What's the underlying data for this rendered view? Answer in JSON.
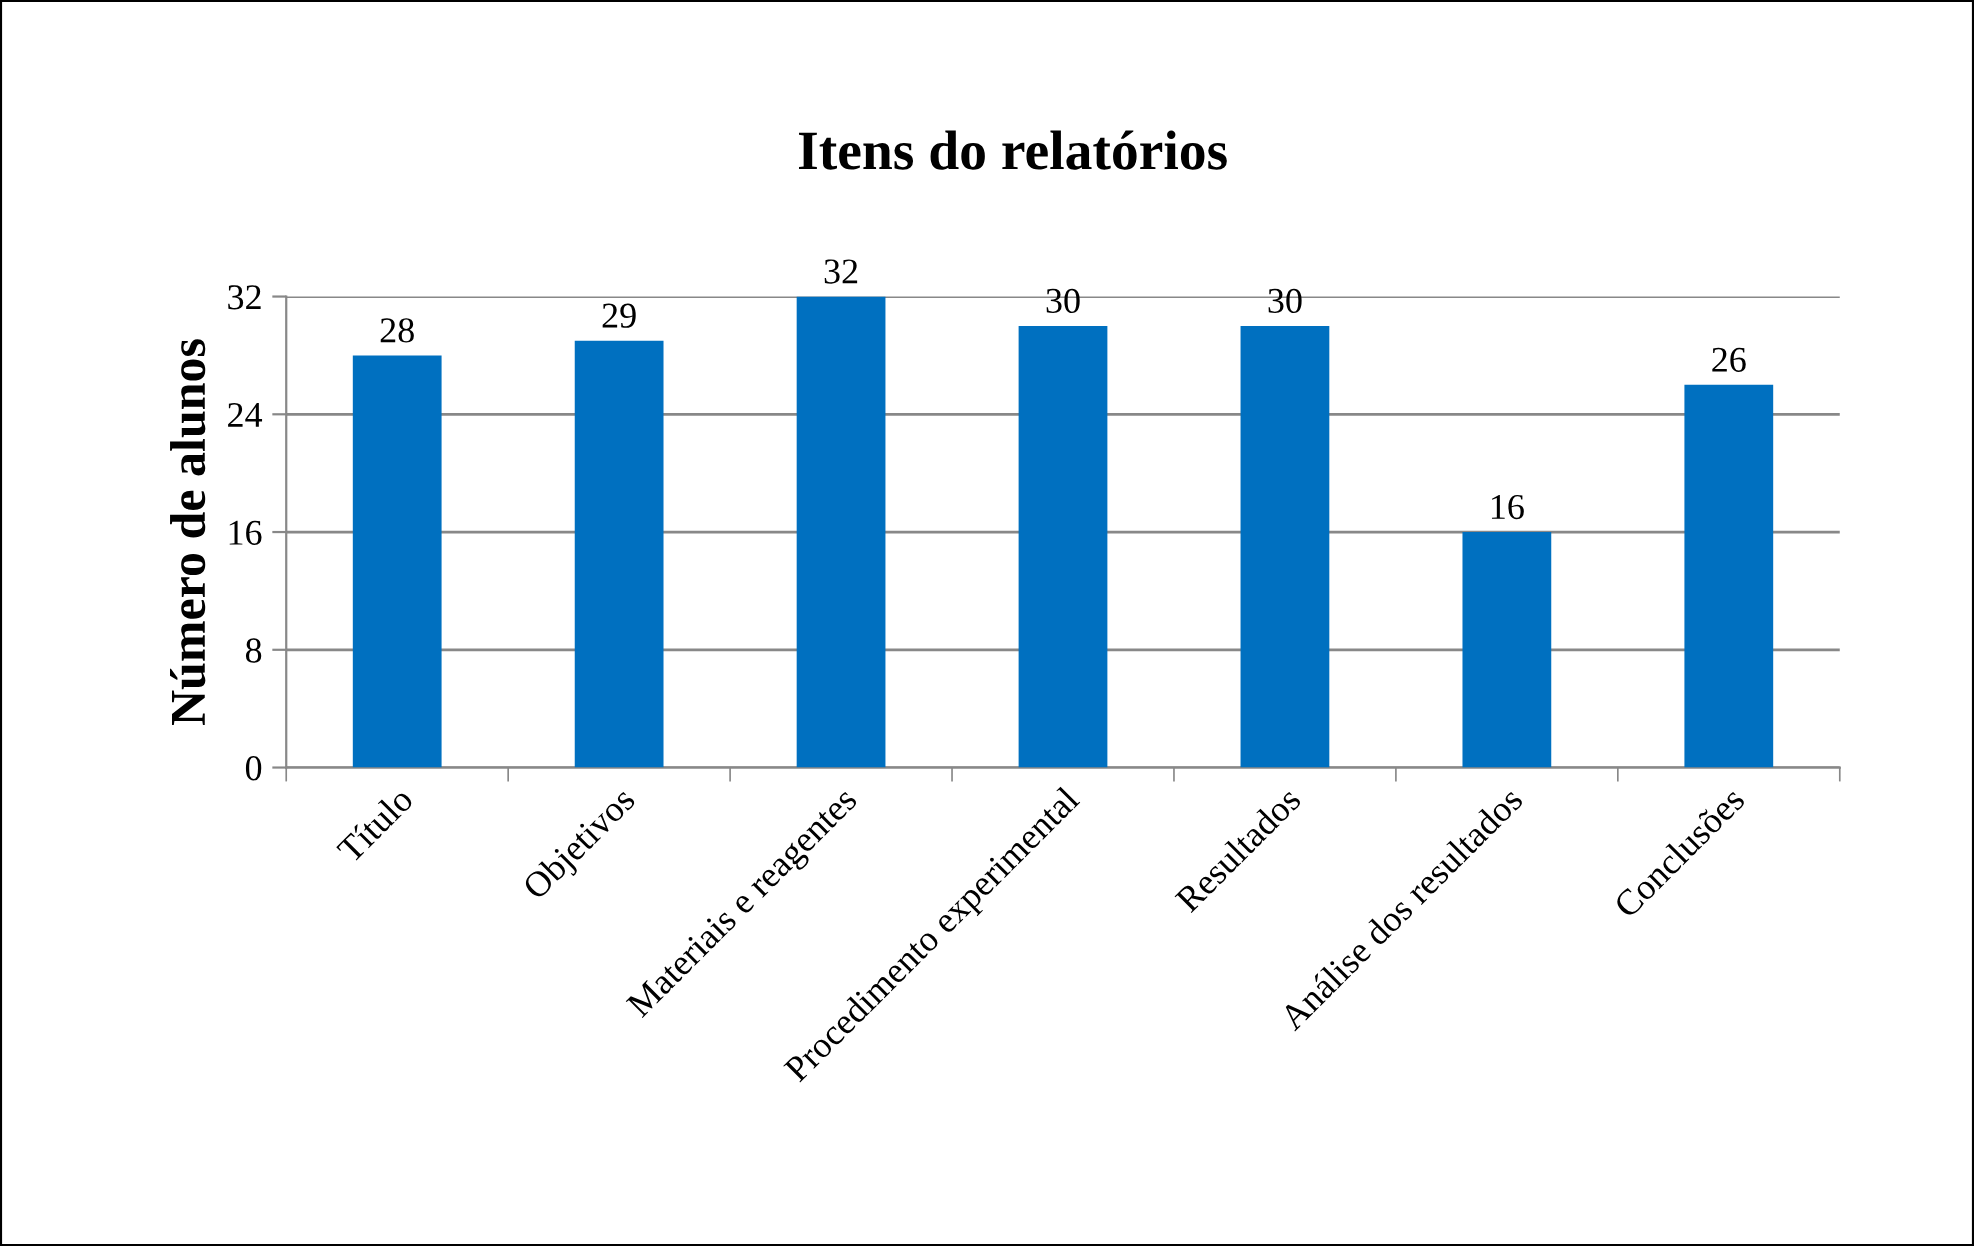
{
  "chart_data": {
    "type": "bar",
    "title": "Itens do relatórios",
    "ylabel": "Número de alunos",
    "categories": [
      "Título",
      "Objetivos",
      "Materiais e reagentes",
      "Procedimento experimental",
      "Resultados",
      "Análise dos resultados",
      "Conclusões"
    ],
    "values": [
      28,
      29,
      32,
      30,
      30,
      16,
      26
    ],
    "color": "#0070c0",
    "ylim": [
      0,
      32
    ],
    "yticks": [
      0,
      8,
      16,
      24,
      32
    ],
    "grid": "y",
    "data_labels": true
  }
}
